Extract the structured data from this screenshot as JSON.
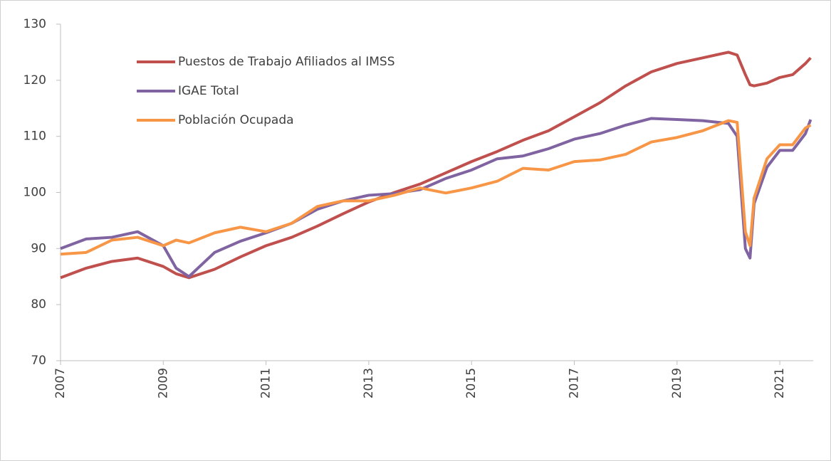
{
  "chart_data": {
    "type": "line",
    "x": [
      2007,
      2007.5,
      2008,
      2008.5,
      2009,
      2009.25,
      2009.5,
      2010,
      2010.5,
      2011,
      2011.5,
      2012,
      2012.5,
      2013,
      2013.5,
      2014,
      2014.5,
      2015,
      2015.5,
      2016,
      2016.5,
      2017,
      2017.5,
      2018,
      2018.5,
      2019,
      2019.5,
      2020,
      2020.17,
      2020.33,
      2020.42,
      2020.5,
      2020.75,
      2021,
      2021.25,
      2021.5,
      2021.6
    ],
    "series": [
      {
        "name": "Puestos de Trabajo Afiliados al IMSS",
        "color": "#c0504d",
        "values": [
          84.8,
          86.5,
          87.7,
          88.3,
          86.8,
          85.5,
          84.8,
          86.3,
          88.5,
          90.5,
          92,
          94,
          96.2,
          98.3,
          100,
          101.5,
          103.5,
          105.5,
          107.3,
          109.3,
          111,
          113.5,
          116,
          119,
          121.5,
          123,
          124,
          125,
          124.5,
          121,
          119.2,
          119,
          119.5,
          120.5,
          121,
          123,
          124
        ]
      },
      {
        "name": "IGAE Total",
        "color": "#8064a2",
        "values": [
          90,
          91.7,
          92,
          93,
          90.5,
          86.5,
          85,
          89.3,
          91.3,
          92.8,
          94.5,
          97,
          98.5,
          99.5,
          99.8,
          100.5,
          102.5,
          104,
          106,
          106.5,
          107.8,
          109.5,
          110.5,
          112,
          113.2,
          113,
          112.8,
          112.3,
          110,
          90,
          88.3,
          98,
          104.5,
          107.5,
          107.5,
          110.5,
          113
        ]
      },
      {
        "name": "Población Ocupada",
        "color": "#f79646",
        "values": [
          89,
          89.3,
          91.5,
          92,
          90.5,
          91.5,
          91,
          92.8,
          93.8,
          93,
          94.5,
          97.5,
          98.5,
          98.5,
          99.5,
          100.8,
          99.9,
          100.8,
          102,
          104.3,
          104,
          105.5,
          105.8,
          106.8,
          109,
          109.8,
          111,
          112.8,
          112.5,
          93,
          90.5,
          99,
          106,
          108.5,
          108.5,
          111.5,
          112
        ]
      }
    ],
    "xlim": [
      2007,
      2021.65
    ],
    "xticks": [
      2007,
      2009,
      2011,
      2013,
      2015,
      2017,
      2019,
      2021
    ],
    "ylim": [
      70,
      130
    ],
    "yticks": [
      70,
      80,
      90,
      100,
      110,
      120,
      130
    ],
    "grid": false,
    "legend": "upper left"
  }
}
